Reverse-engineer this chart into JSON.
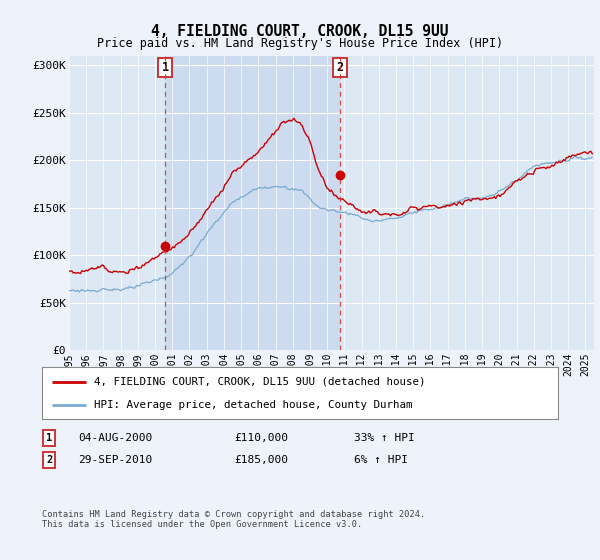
{
  "title": "4, FIELDING COURT, CROOK, DL15 9UU",
  "subtitle": "Price paid vs. HM Land Registry's House Price Index (HPI)",
  "ylim": [
    0,
    310000
  ],
  "xlim_start": 1995.0,
  "xlim_end": 2025.5,
  "yticks": [
    0,
    50000,
    100000,
    150000,
    200000,
    250000,
    300000
  ],
  "ytick_labels": [
    "£0",
    "£50K",
    "£100K",
    "£150K",
    "£200K",
    "£250K",
    "£300K"
  ],
  "background_color": "#eef2fa",
  "plot_bg_color": "#dde8f5",
  "shade_color": "#c8d8ee",
  "red_line_color": "#cc0000",
  "blue_line_color": "#7aaad0",
  "sale1_x": 2000.58,
  "sale1_y": 110000,
  "sale1_label": "1",
  "sale1_date": "04-AUG-2000",
  "sale1_price": "£110,000",
  "sale1_hpi": "33% ↑ HPI",
  "sale2_x": 2010.75,
  "sale2_y": 185000,
  "sale2_label": "2",
  "sale2_date": "29-SEP-2010",
  "sale2_price": "£185,000",
  "sale2_hpi": "6% ↑ HPI",
  "legend_label_red": "4, FIELDING COURT, CROOK, DL15 9UU (detached house)",
  "legend_label_blue": "HPI: Average price, detached house, County Durham",
  "footer": "Contains HM Land Registry data © Crown copyright and database right 2024.\nThis data is licensed under the Open Government Licence v3.0.",
  "xtick_years": [
    1995,
    1996,
    1997,
    1998,
    1999,
    2000,
    2001,
    2002,
    2003,
    2004,
    2005,
    2006,
    2007,
    2008,
    2009,
    2010,
    2011,
    2012,
    2013,
    2014,
    2015,
    2016,
    2017,
    2018,
    2019,
    2020,
    2021,
    2022,
    2023,
    2024,
    2025
  ]
}
